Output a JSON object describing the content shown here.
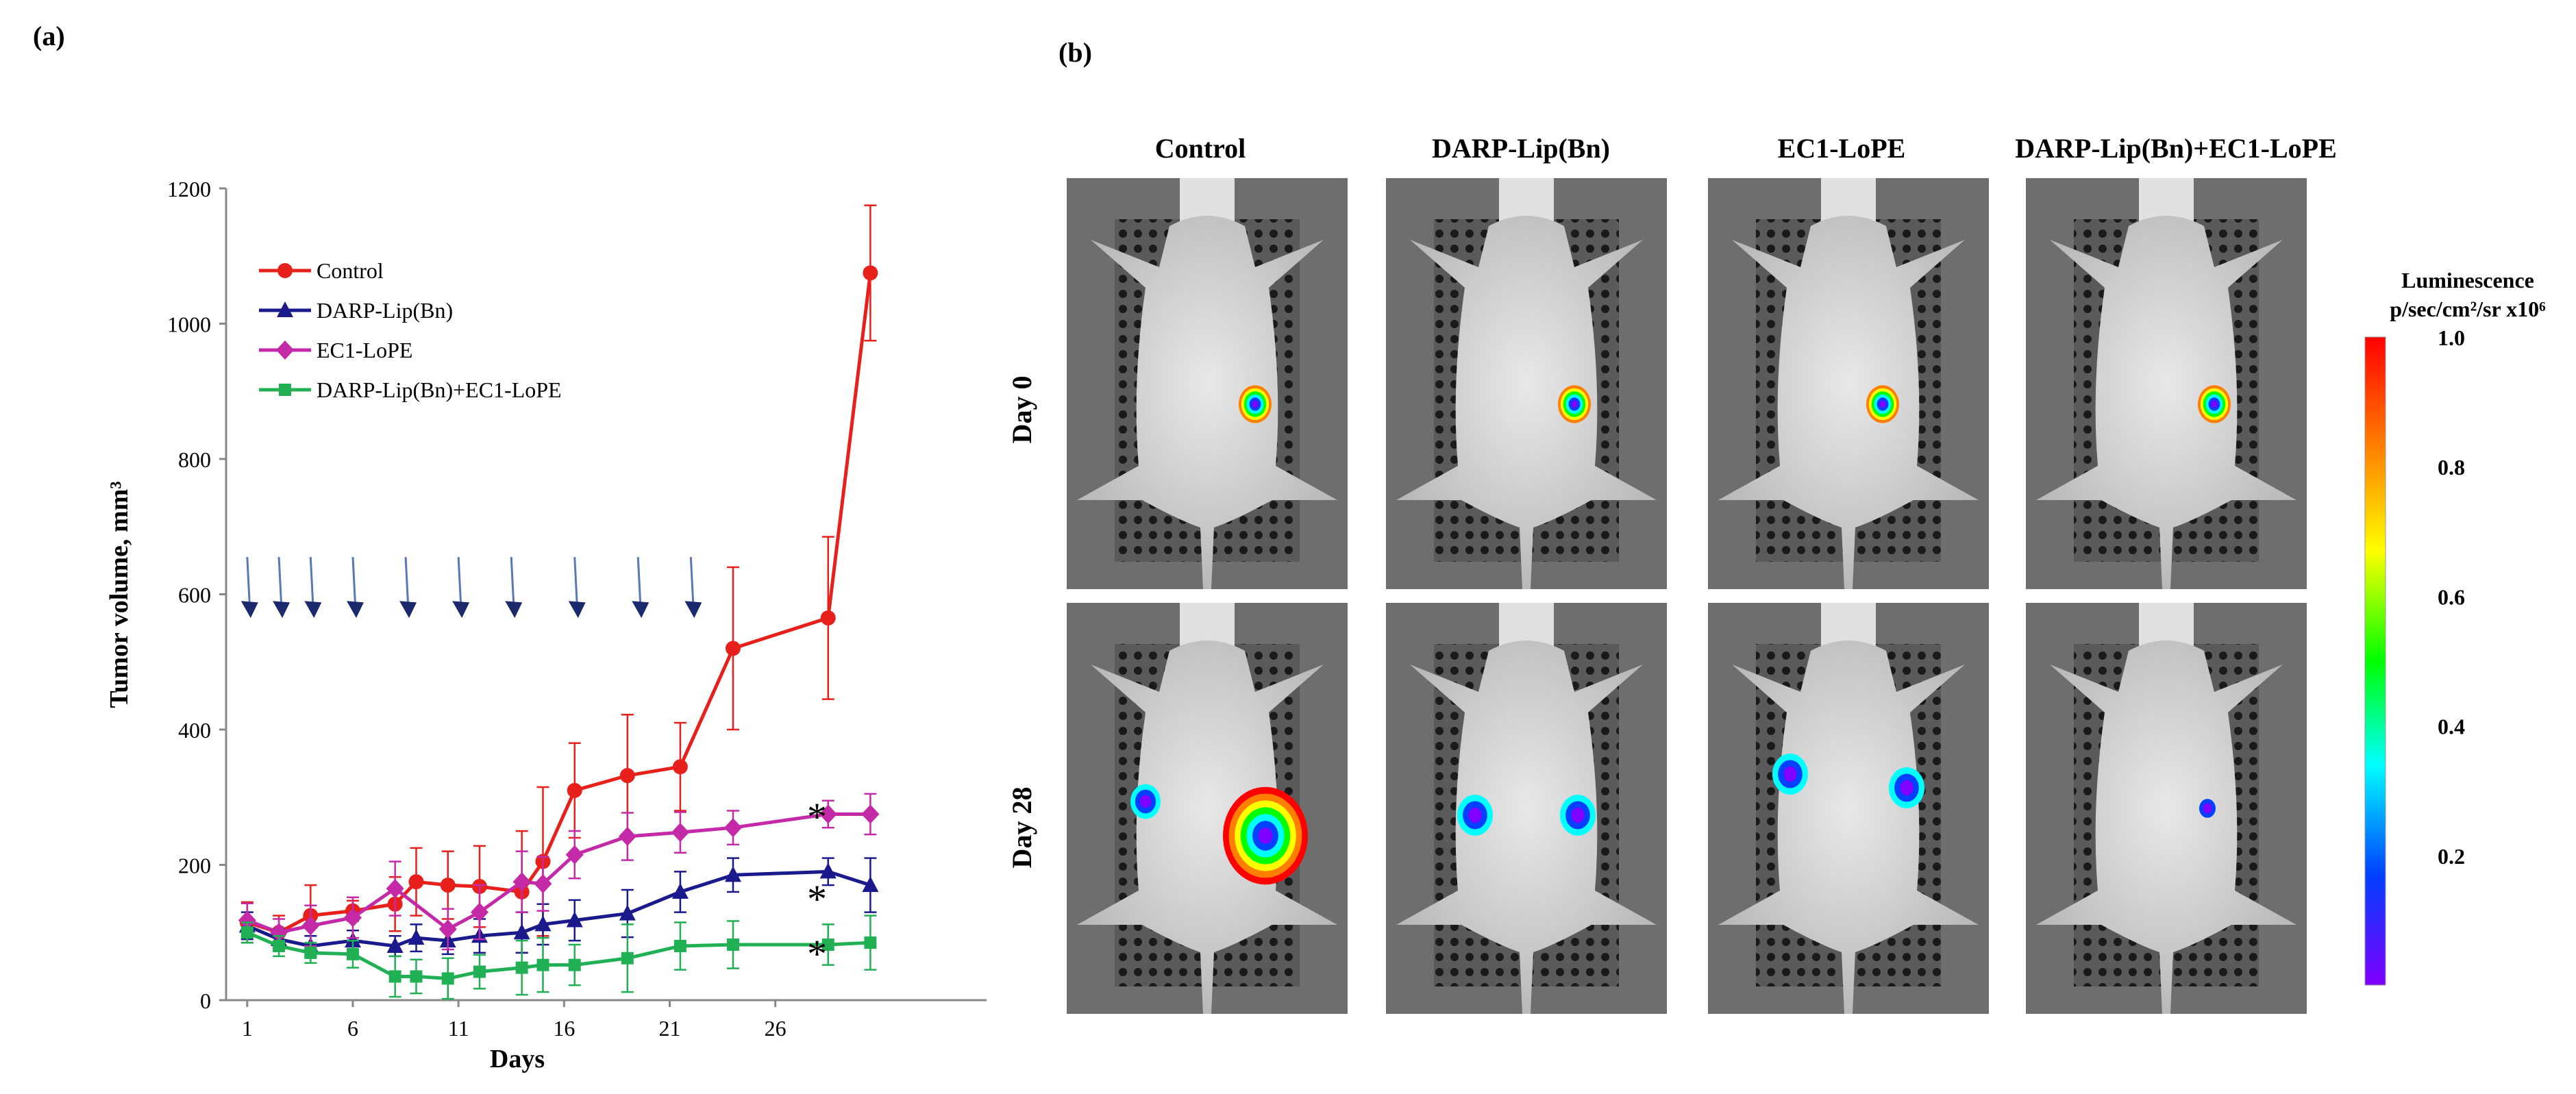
{
  "panel_a": {
    "label": "(a)",
    "chart_data": {
      "type": "line",
      "xlabel": "Days",
      "ylabel": "Tumor volume, mm³",
      "xlim": [
        0,
        36
      ],
      "ylim": [
        0,
        1200
      ],
      "xticks": [
        1,
        6,
        11,
        16,
        21,
        26
      ],
      "yticks": [
        0,
        200,
        400,
        600,
        800,
        1000,
        1200
      ],
      "grid": false,
      "legend_position": "top-left",
      "treatment_arrows_days": [
        1,
        2.5,
        4,
        6,
        8.5,
        11,
        13.5,
        16.5,
        19.5,
        22
      ],
      "series": [
        {
          "name": "Control",
          "color": "#e8201c",
          "marker": "circle",
          "x": [
            1,
            2.5,
            4,
            6,
            8,
            9,
            10.5,
            12,
            14,
            15,
            16.5,
            19,
            21.5,
            24,
            28.5,
            30.5
          ],
          "y": [
            115,
            100,
            125,
            132,
            142,
            175,
            170,
            168,
            160,
            205,
            310,
            332,
            345,
            520,
            565,
            1075
          ],
          "err": [
            30,
            25,
            45,
            15,
            40,
            50,
            50,
            60,
            90,
            110,
            70,
            90,
            65,
            120,
            120,
            100
          ]
        },
        {
          "name": "DARP-Lip(Bn)",
          "color": "#1a1a8c",
          "marker": "triangle",
          "x": [
            1,
            2.5,
            4,
            6,
            8,
            9,
            10.5,
            12,
            14,
            15,
            16.5,
            19,
            21.5,
            24,
            28.5,
            30.5
          ],
          "y": [
            110,
            90,
            80,
            88,
            80,
            92,
            88,
            95,
            100,
            112,
            118,
            128,
            160,
            185,
            190,
            170
          ],
          "err": [
            20,
            15,
            15,
            15,
            15,
            20,
            20,
            25,
            30,
            30,
            30,
            35,
            30,
            25,
            20,
            40
          ]
        },
        {
          "name": "EC1-LoPE",
          "color": "#c42aa7",
          "marker": "diamond",
          "x": [
            1,
            2.5,
            4,
            6,
            8,
            10.5,
            12,
            14,
            15,
            16.5,
            19,
            21.5,
            24,
            28.5,
            30.5
          ],
          "y": [
            118,
            100,
            110,
            122,
            165,
            105,
            130,
            175,
            172,
            215,
            242,
            248,
            255,
            275,
            275
          ],
          "err": [
            25,
            20,
            30,
            30,
            40,
            30,
            40,
            45,
            40,
            35,
            35,
            30,
            25,
            20,
            30
          ]
        },
        {
          "name": "DARP-Lip(Bn)+EC1-LoPE",
          "color": "#22b055",
          "marker": "square",
          "x": [
            1,
            2.5,
            4,
            6,
            8,
            9,
            10.5,
            12,
            14,
            15,
            16.5,
            19,
            21.5,
            24,
            28.5,
            30.5
          ],
          "y": [
            100,
            80,
            70,
            68,
            35,
            35,
            32,
            42,
            48,
            52,
            52,
            62,
            80,
            82,
            82,
            85
          ],
          "err": [
            15,
            15,
            15,
            20,
            30,
            25,
            30,
            25,
            40,
            40,
            30,
            50,
            35,
            35,
            30,
            40
          ]
        }
      ],
      "annotations": [
        "*",
        "*",
        "*"
      ]
    }
  },
  "panel_b": {
    "label": "(b)",
    "columns": [
      "Control",
      "DARP-Lip(Bn)",
      "EC1-LoPE",
      "DARP-Lip(Bn)+EC1-LoPE"
    ],
    "rows": [
      "Day 0",
      "Day 28"
    ],
    "colorbar": {
      "title": "Luminescence",
      "units": "p/sec/cm²/sr x10⁶",
      "ticks": [
        "1.0",
        "0.8",
        "0.6",
        "0.4",
        "0.2"
      ],
      "tick_values": [
        1.0,
        0.8,
        0.6,
        0.4,
        0.2
      ],
      "gradient": [
        "#ff0000",
        "#ff8000",
        "#ffff00",
        "#00ff00",
        "#00ffff",
        "#0040ff",
        "#8000ff"
      ]
    },
    "signals": [
      [
        {
          "intensity": 0.85
        },
        {
          "intensity": 0.85
        },
        {
          "intensity": 0.85
        },
        {
          "intensity": 0.9
        }
      ],
      [
        {
          "intensity": 1.0
        },
        {
          "intensity": 0.3
        },
        {
          "intensity": 0.4
        },
        {
          "intensity": 0.2
        }
      ]
    ]
  }
}
